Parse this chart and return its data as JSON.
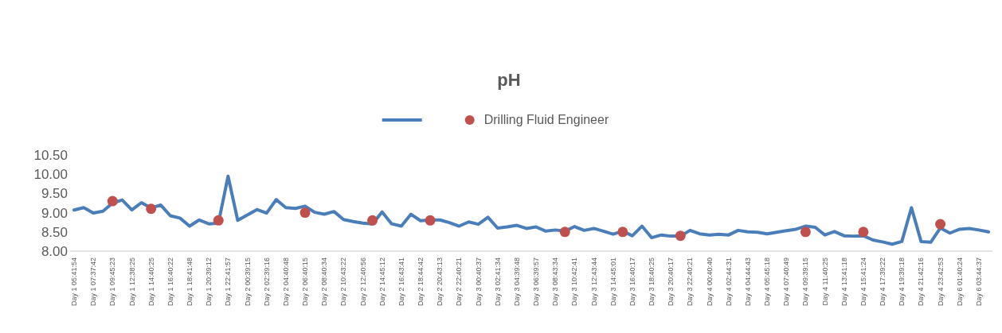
{
  "chart_data": {
    "type": "line",
    "title": "pH",
    "categories": [
      "Day 1 05:41:54",
      null,
      "Day 1 07:37:42",
      null,
      "Day 1 09:45:23",
      null,
      "Day 1 12:38:25",
      null,
      "Day 1 14:40:25",
      null,
      "Day 1 16:40:22",
      null,
      "Day 1 18:41:48",
      null,
      "Day 1 20:39:12",
      null,
      "Day 1 22:41:57",
      null,
      "Day 2 00:39:15",
      null,
      "Day 2 02:39:16",
      null,
      "Day 2 04:40:48",
      null,
      "Day 2 06:40:15",
      null,
      "Day 2 08:40:34",
      null,
      "Day 2 10:43:22",
      null,
      "Day 2 12:40:56",
      null,
      "Day 2 14:45:12",
      null,
      "Day 2 16:43:41",
      null,
      "Day 2 18:44:42",
      null,
      "Day 2 20:43:13",
      null,
      "Day 2 22:40:21",
      null,
      "Day 3 00:40:37",
      null,
      "Day 3 02:41:34",
      null,
      "Day 3 04:39:48",
      null,
      "Day 3 06:39:57",
      null,
      "Day 3 08:43:34",
      null,
      "Day 3 10:42:41",
      null,
      "Day 3 12:43:44",
      null,
      "Day 3 14:45:01",
      null,
      "Day 3 16:40:17",
      null,
      "Day 3 18:40:25",
      null,
      "Day 3 20:40:17",
      null,
      "Day 3 22:40:21",
      null,
      "Day 4 00:40:40",
      null,
      "Day 4 02:44:31",
      null,
      "Day 4 04:44:43",
      null,
      "Day 4 05:45:18",
      null,
      "Day 4 07:40:49",
      null,
      "Day 4 09:39:15",
      null,
      "Day 4 11:40:25",
      null,
      "Day 4 13:41:18",
      null,
      "Day 4 15:41:24",
      null,
      "Day 4 17:39:22",
      null,
      "Day 4 19:39:18",
      null,
      "Day 4 21:42:16",
      null,
      "Day 4 23:42:53",
      null,
      "Day 6 01:40:24",
      null,
      "Day 6 03:44:37",
      null
    ],
    "series": [
      {
        "color": "#4a7ebb",
        "values": [
          9.07,
          9.13,
          8.99,
          9.04,
          9.25,
          9.33,
          9.07,
          9.26,
          9.12,
          9.2,
          8.92,
          8.86,
          8.65,
          8.81,
          8.71,
          8.73,
          9.95,
          8.8,
          8.94,
          9.08,
          8.99,
          9.34,
          9.13,
          9.11,
          9.17,
          9.01,
          8.96,
          9.03,
          8.82,
          8.77,
          8.73,
          8.71,
          9.02,
          8.71,
          8.65,
          8.96,
          8.79,
          8.81,
          8.81,
          8.74,
          8.65,
          8.76,
          8.7,
          8.88,
          8.6,
          8.63,
          8.67,
          8.59,
          8.63,
          8.52,
          8.55,
          8.52,
          8.64,
          8.54,
          8.59,
          8.52,
          8.44,
          8.52,
          8.4,
          8.65,
          8.35,
          8.42,
          8.39,
          8.39,
          8.54,
          8.45,
          8.42,
          8.44,
          8.42,
          8.54,
          8.5,
          8.49,
          8.45,
          8.49,
          8.53,
          8.57,
          8.65,
          8.62,
          8.42,
          8.51,
          8.4,
          8.39,
          8.4,
          8.29,
          8.24,
          8.18,
          8.25,
          9.13,
          8.25,
          8.23,
          8.6,
          8.47,
          8.57,
          8.59,
          8.55,
          8.5
        ]
      },
      {
        "type": "scatter",
        "name": "Drilling Fluid Engineer",
        "color": "#c0504d",
        "marker": "circle",
        "values": [
          null,
          null,
          null,
          null,
          9.3,
          null,
          null,
          null,
          9.1,
          null,
          null,
          null,
          null,
          null,
          null,
          8.8,
          null,
          null,
          null,
          null,
          null,
          null,
          null,
          null,
          9.0,
          null,
          null,
          null,
          null,
          null,
          null,
          8.8,
          null,
          null,
          null,
          null,
          null,
          8.8,
          null,
          null,
          null,
          null,
          null,
          null,
          null,
          null,
          null,
          null,
          null,
          null,
          null,
          8.5,
          null,
          null,
          null,
          null,
          null,
          8.5,
          null,
          null,
          null,
          null,
          null,
          8.4,
          null,
          null,
          null,
          null,
          null,
          null,
          null,
          null,
          null,
          null,
          null,
          null,
          8.5,
          null,
          null,
          null,
          null,
          null,
          8.5,
          null,
          null,
          null,
          null,
          null,
          null,
          null,
          8.7,
          null,
          null,
          null,
          null,
          null
        ]
      }
    ],
    "ylim": [
      8,
      10.5
    ],
    "yticks": [
      {
        "value": 8,
        "label": "8.00"
      },
      {
        "value": 8.5,
        "label": "8.50"
      },
      {
        "value": 9,
        "label": "9.00"
      },
      {
        "value": 9.5,
        "label": "9.50"
      },
      {
        "value": 10,
        "label": "10.00"
      },
      {
        "value": 10.5,
        "label": "10.50"
      }
    ],
    "grid": false,
    "legend": "top"
  }
}
